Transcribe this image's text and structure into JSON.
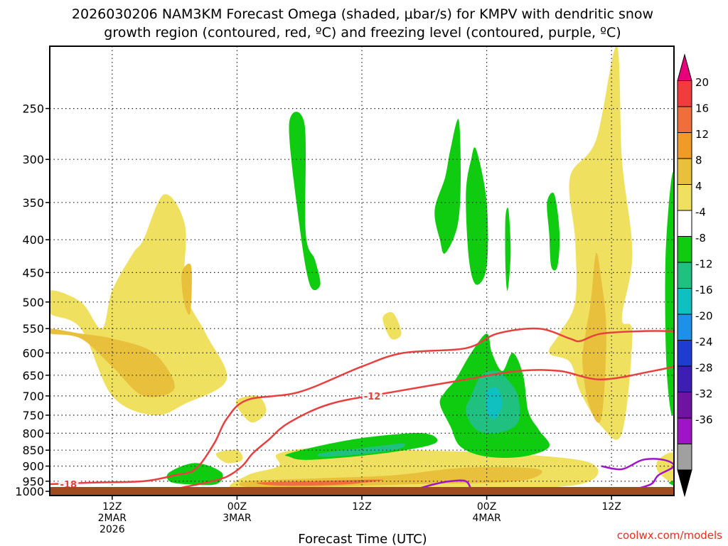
{
  "header": {
    "title_line1": "2026030206 NAM3KM Forecast Omega (shaded, μbar/s) for KMPV with dendritic snow",
    "title_line2": "growth region (contoured, red, ºC) and freezing level (contoured, purple, ºC)"
  },
  "footer": {
    "credit": "coolwx.com/models"
  },
  "chart_data": {
    "type": "heatmap",
    "title": "2026030206 NAM3KM Forecast Omega (shaded, μbar/s) for KMPV with dendritic snow growth region (contoured, red, ºC) and freezing level (contoured, purple, ºC)",
    "xlabel": "Forecast Time (UTC)",
    "ylabel": "",
    "x_unit": "hours from 2026-03-02 06Z",
    "xlim": [
      0,
      60
    ],
    "y_scale": "log-pressure (inverted)",
    "ylim_hpa": [
      1000,
      200
    ],
    "y_ticks_hpa": [
      250,
      300,
      350,
      400,
      450,
      500,
      550,
      600,
      650,
      700,
      750,
      800,
      850,
      900,
      950,
      1000
    ],
    "x_ticks": [
      {
        "hour": 6,
        "lines": [
          "12Z",
          "2MAR",
          "2026"
        ]
      },
      {
        "hour": 18,
        "lines": [
          "00Z",
          "3MAR"
        ]
      },
      {
        "hour": 30,
        "lines": [
          "12Z"
        ]
      },
      {
        "hour": 42,
        "lines": [
          "00Z",
          "4MAR"
        ]
      },
      {
        "hour": 54,
        "lines": [
          "12Z"
        ]
      }
    ],
    "grid": true,
    "surface_hpa": 970,
    "colorbar": {
      "ticks": [
        "20",
        "16",
        "12",
        "8",
        "4",
        "-4",
        "-8",
        "-12",
        "-16",
        "-20",
        "-24",
        "-28",
        "-32",
        "-36"
      ],
      "colors": [
        "#e8007a",
        "#f03c3c",
        "#f06e3c",
        "#f09a28",
        "#e8c03c",
        "#f0e060",
        "#ffffff",
        "#10cc10",
        "#20c080",
        "#10c0c0",
        "#1e90e8",
        "#1e3cd0",
        "#3c1eb4",
        "#6e14a0",
        "#a014c8",
        "#a0a0a0",
        "#000000"
      ]
    },
    "omega_regions": [
      {
        "color": "#f0e060",
        "pts": [
          [
            0,
            520
          ],
          [
            3,
            550
          ],
          [
            6,
            700
          ],
          [
            10,
            750
          ],
          [
            13,
            720
          ],
          [
            17,
            660
          ],
          [
            15,
            560
          ],
          [
            13,
            480
          ],
          [
            13,
            380
          ],
          [
            11,
            340
          ],
          [
            9,
            400
          ],
          [
            8,
            420
          ],
          [
            6,
            480
          ],
          [
            5,
            550
          ],
          [
            3,
            500
          ],
          [
            0,
            480
          ]
        ]
      },
      {
        "color": "#e8c03c",
        "pts": [
          [
            0,
            560
          ],
          [
            3,
            570
          ],
          [
            6,
            630
          ],
          [
            9,
            700
          ],
          [
            12,
            680
          ],
          [
            10,
            600
          ],
          [
            6,
            570
          ],
          [
            3,
            560
          ],
          [
            0,
            550
          ]
        ]
      },
      {
        "color": "#e8c03c",
        "pts": [
          [
            12.7,
            450
          ],
          [
            13.6,
            440
          ],
          [
            13.5,
            520
          ],
          [
            12.9,
            500
          ]
        ]
      },
      {
        "color": "#f0e060",
        "pts": [
          [
            18,
            710
          ],
          [
            20,
            700
          ],
          [
            20.8,
            740
          ],
          [
            19.5,
            770
          ],
          [
            18.3,
            740
          ]
        ]
      },
      {
        "color": "#f0e060",
        "pts": [
          [
            16,
            860
          ],
          [
            18,
            850
          ],
          [
            18.5,
            880
          ],
          [
            17,
            890
          ]
        ]
      },
      {
        "color": "#f0e060",
        "pts": [
          [
            22,
            860
          ],
          [
            27,
            840
          ],
          [
            35,
            850
          ],
          [
            44,
            860
          ],
          [
            52,
            890
          ],
          [
            51,
            960
          ],
          [
            40,
            980
          ],
          [
            30,
            980
          ],
          [
            18,
            980
          ],
          [
            19,
            930
          ],
          [
            22,
            900
          ]
        ]
      },
      {
        "color": "#e8c03c",
        "pts": [
          [
            19,
            950
          ],
          [
            26,
            940
          ],
          [
            33,
            930
          ],
          [
            40,
            905
          ],
          [
            47,
            910
          ],
          [
            45,
            950
          ],
          [
            35,
            960
          ],
          [
            25,
            970
          ],
          [
            19,
            970
          ]
        ]
      },
      {
        "color": "#f06e3c",
        "pts": [
          [
            20,
            955
          ],
          [
            25,
            950
          ],
          [
            32,
            945
          ],
          [
            28,
            962
          ],
          [
            22,
            965
          ]
        ]
      },
      {
        "color": "#f0e060",
        "pts": [
          [
            32,
            530
          ],
          [
            33,
            520
          ],
          [
            33.8,
            560
          ],
          [
            32.8,
            570
          ]
        ]
      },
      {
        "color": "#f0e060",
        "pts": [
          [
            50,
            320
          ],
          [
            52.5,
            280
          ],
          [
            54.5,
            200
          ],
          [
            55,
            300
          ],
          [
            56,
            420
          ],
          [
            55,
            530
          ],
          [
            56,
            560
          ],
          [
            55,
            800
          ],
          [
            53,
            780
          ],
          [
            51,
            690
          ],
          [
            50,
            620
          ],
          [
            48,
            600
          ],
          [
            49,
            560
          ],
          [
            50.5,
            500
          ],
          [
            50.5,
            400
          ]
        ]
      },
      {
        "color": "#e8c03c",
        "pts": [
          [
            51.5,
            560
          ],
          [
            52,
            500
          ],
          [
            52.5,
            420
          ],
          [
            53,
            460
          ],
          [
            53.5,
            560
          ],
          [
            53,
            760
          ],
          [
            51.8,
            720
          ],
          [
            51.2,
            620
          ]
        ]
      },
      {
        "color": "#f0e060",
        "pts": [
          [
            58.5,
            880
          ],
          [
            60,
            860
          ],
          [
            60,
            950
          ],
          [
            58.5,
            920
          ]
        ]
      },
      {
        "color": "#10cc10",
        "pts": [
          [
            11.5,
            920
          ],
          [
            14,
            890
          ],
          [
            16.5,
            920
          ],
          [
            16,
            960
          ],
          [
            13,
            960
          ],
          [
            11.5,
            950
          ]
        ]
      },
      {
        "color": "#10cc10",
        "pts": [
          [
            23,
            860
          ],
          [
            27,
            830
          ],
          [
            31,
            810
          ],
          [
            36,
            800
          ],
          [
            37,
            830
          ],
          [
            32,
            860
          ],
          [
            25,
            880
          ],
          [
            23,
            870
          ]
        ]
      },
      {
        "color": "#20c080",
        "pts": [
          [
            26,
            860
          ],
          [
            31,
            840
          ],
          [
            34,
            830
          ],
          [
            33,
            850
          ],
          [
            27,
            870
          ]
        ]
      },
      {
        "color": "#10cc10",
        "pts": [
          [
            39,
            660
          ],
          [
            40.5,
            600
          ],
          [
            42,
            560
          ],
          [
            42.5,
            600
          ],
          [
            43.5,
            640
          ],
          [
            44.5,
            600
          ],
          [
            45.5,
            650
          ],
          [
            46,
            740
          ],
          [
            47,
            790
          ],
          [
            48,
            840
          ],
          [
            45.5,
            870
          ],
          [
            42,
            870
          ],
          [
            39.5,
            840
          ],
          [
            38.5,
            780
          ],
          [
            37.5,
            720
          ],
          [
            38,
            690
          ]
        ]
      },
      {
        "color": "#20c080",
        "pts": [
          [
            40.5,
            700
          ],
          [
            41.5,
            650
          ],
          [
            43,
            640
          ],
          [
            44,
            660
          ],
          [
            45,
            700
          ],
          [
            45,
            770
          ],
          [
            43,
            800
          ],
          [
            41,
            790
          ],
          [
            40,
            740
          ]
        ]
      },
      {
        "color": "#10c0c0",
        "pts": [
          [
            42,
            690
          ],
          [
            43,
            680
          ],
          [
            43.5,
            720
          ],
          [
            42.8,
            760
          ],
          [
            42,
            740
          ]
        ]
      },
      {
        "color": "#10cc10",
        "pts": [
          [
            23,
            265
          ],
          [
            24.5,
            265
          ],
          [
            24.6,
            390
          ],
          [
            25.5,
            430
          ],
          [
            26,
            470
          ],
          [
            25,
            470
          ],
          [
            24,
            380
          ]
        ]
      },
      {
        "color": "#10cc10",
        "pts": [
          [
            37,
            360
          ],
          [
            38,
            320
          ],
          [
            38.5,
            290
          ],
          [
            39.3,
            260
          ],
          [
            39.5,
            320
          ],
          [
            39.2,
            380
          ],
          [
            38,
            420
          ],
          [
            37.5,
            400
          ]
        ]
      },
      {
        "color": "#10cc10",
        "pts": [
          [
            40,
            340
          ],
          [
            40.5,
            300
          ],
          [
            41,
            290
          ],
          [
            42,
            350
          ],
          [
            42,
            440
          ],
          [
            41,
            470
          ],
          [
            40.3,
            430
          ]
        ]
      },
      {
        "color": "#10cc10",
        "pts": [
          [
            43.8,
            370
          ],
          [
            44.1,
            360
          ],
          [
            44.3,
            420
          ],
          [
            44,
            480
          ],
          [
            43.8,
            440
          ]
        ]
      },
      {
        "color": "#10cc10",
        "pts": [
          [
            47.8,
            350
          ],
          [
            48.5,
            340
          ],
          [
            49,
            390
          ],
          [
            48.8,
            440
          ],
          [
            48.2,
            440
          ],
          [
            48,
            390
          ]
        ]
      },
      {
        "color": "#10cc10",
        "pts": [
          [
            59.2,
            420
          ],
          [
            60,
            320
          ],
          [
            60,
            720
          ],
          [
            59.3,
            640
          ]
        ]
      },
      {
        "color": "#10cc10",
        "pts": [
          [
            59.5,
            955
          ],
          [
            60,
            950
          ],
          [
            60,
            965
          ]
        ]
      }
    ],
    "series": [
      {
        "name": "-12",
        "color": "#e84040",
        "label_pos": [
          31,
          700
        ],
        "pts": [
          [
            10,
            1000
          ],
          [
            11.8,
            980
          ],
          [
            13,
            970
          ],
          [
            15,
            955
          ],
          [
            17,
            935
          ],
          [
            18.5,
            900
          ],
          [
            19.5,
            860
          ],
          [
            21,
            820
          ],
          [
            23,
            770
          ],
          [
            27,
            720
          ],
          [
            33,
            690
          ],
          [
            40,
            660
          ],
          [
            45,
            640
          ],
          [
            49,
            640
          ],
          [
            53,
            660
          ],
          [
            58,
            640
          ],
          [
            60,
            630
          ]
        ]
      },
      {
        "name": "-18",
        "color": "#e84040",
        "label_pos": [
          1.8,
          960
        ],
        "pts": [
          [
            0,
            960
          ],
          [
            4,
            955
          ],
          [
            9,
            950
          ],
          [
            12,
            930
          ],
          [
            14,
            910
          ],
          [
            15.8,
            830
          ],
          [
            17,
            760
          ],
          [
            19,
            710
          ],
          [
            24,
            690
          ],
          [
            30,
            630
          ],
          [
            34,
            600
          ],
          [
            40,
            590
          ],
          [
            43,
            560
          ],
          [
            47,
            550
          ],
          [
            50,
            570
          ],
          [
            51,
            575
          ],
          [
            53,
            560
          ],
          [
            57,
            555
          ],
          [
            60,
            555
          ]
        ]
      }
    ],
    "freezing_level": [
      {
        "name": "0",
        "color": "#a014c8",
        "pts": [
          [
            35,
            980
          ],
          [
            37,
            960
          ],
          [
            38.5,
            950
          ],
          [
            40,
            950
          ],
          [
            40.5,
            980
          ]
        ]
      },
      {
        "name": "0",
        "color": "#a014c8",
        "pts": [
          [
            53,
            900
          ],
          [
            55,
            910
          ],
          [
            57,
            880
          ],
          [
            59,
            880
          ],
          [
            60,
            900
          ],
          [
            58.5,
            930
          ],
          [
            57.8,
            960
          ],
          [
            56,
            980
          ]
        ]
      }
    ]
  }
}
